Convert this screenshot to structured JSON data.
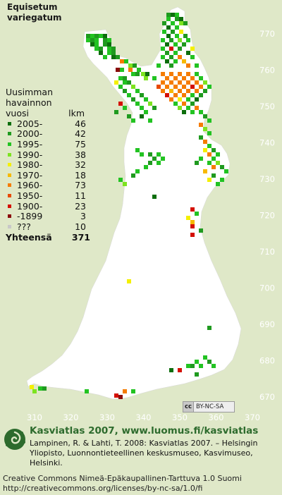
{
  "title": {
    "line1": "Equisetum",
    "line2": "variegatum"
  },
  "legend": {
    "header_lines": [
      "Uusimman",
      "havainnon"
    ],
    "col_left": "vuosi",
    "col_right": "lkm",
    "rows": [
      {
        "label": "2005-",
        "count": "46",
        "color": "#0d6e0d"
      },
      {
        "label": "2000-",
        "count": "42",
        "color": "#1f9a1f"
      },
      {
        "label": "1995-",
        "count": "75",
        "color": "#22c322"
      },
      {
        "label": "1990-",
        "count": "38",
        "color": "#7de320"
      },
      {
        "label": "1980-",
        "count": "32",
        "color": "#f4f000"
      },
      {
        "label": "1970-",
        "count": "18",
        "color": "#f7b900"
      },
      {
        "label": "1960-",
        "count": "73",
        "color": "#f57c00"
      },
      {
        "label": "1950-",
        "count": "11",
        "color": "#e84a00"
      },
      {
        "label": "1900-",
        "count": "23",
        "color": "#d41000"
      },
      {
        "label": "-1899",
        "count": "3",
        "color": "#8a0c0c"
      },
      {
        "label": "???",
        "count": "10",
        "color": "#c8c8c8"
      }
    ],
    "total_label": "Yhteensä",
    "total_count": "371"
  },
  "grid": {
    "y_labels": [
      "770",
      "760",
      "750",
      "740",
      "730",
      "720",
      "710",
      "700",
      "690",
      "680",
      "670"
    ],
    "x_labels": [
      "310",
      "320",
      "330",
      "340",
      "350",
      "360",
      "370"
    ]
  },
  "license_badge": {
    "cc": "cc",
    "text": "BY-NC-SA"
  },
  "footer": {
    "site_title": "Kasviatlas 2007, www.luomus.fi/kasviatlas",
    "citation": "Lampinen, R. & Lahti, T. 2008: Kasviatlas 2007. – Helsingin Yliopisto, Luonnontieteellinen keskusmuseo, Kasvimuseo, Helsinki.",
    "license_line1": "Creative Commons Nimeä-Epäkaupallinen-Tarttuva 1.0 Suomi",
    "license_line2": "http://creativecommons.org/licenses/by-nc-sa/1.0/fi"
  },
  "colors": {
    "background": "#dfe8c8",
    "land": "#ffffff",
    "grid_label": "#ffffff",
    "brand_green": "#2d6b2d"
  }
}
